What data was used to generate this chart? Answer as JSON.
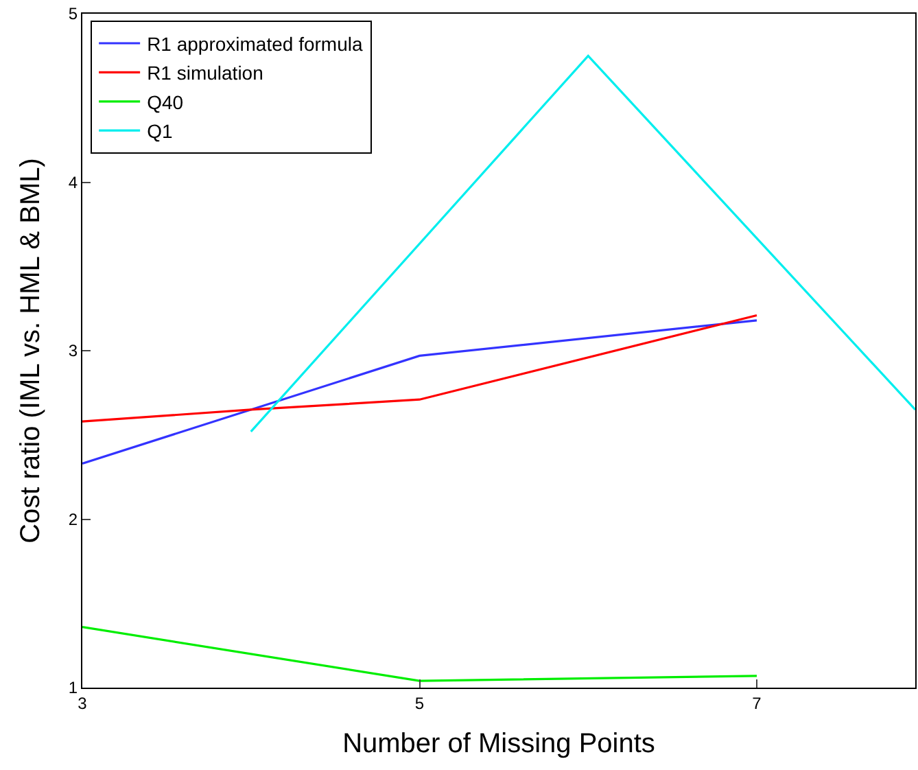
{
  "chart_data": {
    "type": "line",
    "xlabel": "Number of Missing Points",
    "ylabel": "Cost ratio (IML vs. HML & BML)",
    "xlim": [
      3,
      7.94
    ],
    "ylim": [
      1,
      5
    ],
    "xticks": [
      3,
      5,
      7
    ],
    "yticks": [
      1,
      2,
      3,
      4,
      5
    ],
    "legend": "top left",
    "marker": "none",
    "line_style": "solid",
    "series": [
      {
        "name": "R1 approximated formula",
        "color": "#3333ff",
        "x": [
          3,
          5,
          7
        ],
        "values": [
          2.33,
          2.97,
          3.18
        ]
      },
      {
        "name": "R1 simulation",
        "color": "#ff0000",
        "x": [
          3,
          4,
          5,
          7
        ],
        "values": [
          2.58,
          2.65,
          2.71,
          3.21
        ]
      },
      {
        "name": "Q40",
        "color": "#00ee00",
        "x": [
          3,
          5,
          7
        ],
        "values": [
          1.36,
          1.04,
          1.07
        ]
      },
      {
        "name": "Q1",
        "color": "#00eeee",
        "x": [
          4,
          6,
          7.94
        ],
        "values": [
          2.52,
          4.75,
          2.65
        ]
      }
    ]
  }
}
